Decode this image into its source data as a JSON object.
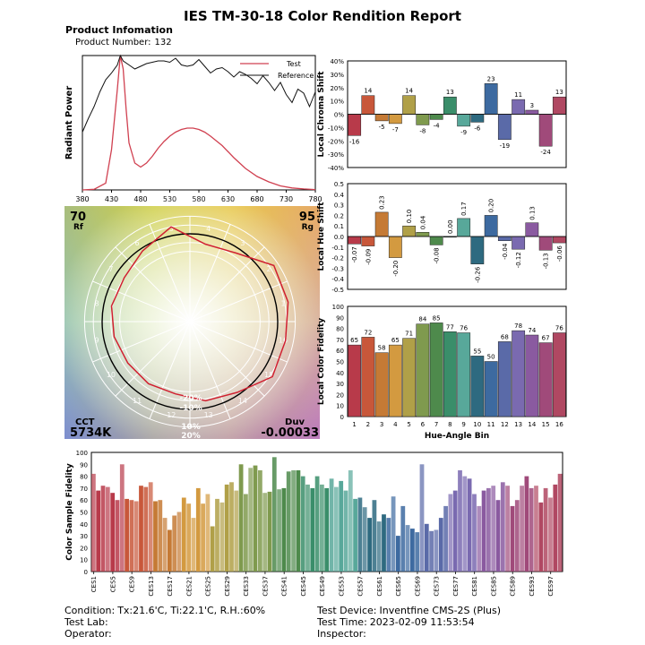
{
  "report": {
    "title": "IES TM-30-18 Color Rendition Report",
    "info_heading": "Product Infomation",
    "product_number_label": "Product Number:",
    "product_number": "132"
  },
  "footer": {
    "condition_label": "Condition:",
    "condition_value": "Tx:21.6'C, Ti:22.1'C, R.H.:60%",
    "test_lab_label": "Test Lab:",
    "operator_label": "Operator:",
    "device_label": "Test Device:",
    "device_value": "Inventfine CMS-2S (Plus)",
    "time_label": "Test Time:",
    "time_value": "2023-02-09 11:53:54",
    "inspector_label": "Inspector:"
  },
  "colors": {
    "test_line": "#d04050",
    "reference_line": "#111111",
    "bar_outline": "#222222"
  },
  "chart_data": [
    {
      "type": "line",
      "ylabel": "Radiant Power",
      "x_ticks": [
        "380",
        "430",
        "480",
        "530",
        "580",
        "630",
        "680",
        "730",
        "780"
      ],
      "xlim": [
        380,
        780
      ],
      "ylim": [
        0,
        1
      ],
      "legend": [
        "Test",
        "Reference"
      ],
      "series": [
        {
          "name": "Test",
          "x": [
            380,
            400,
            420,
            430,
            440,
            445,
            450,
            455,
            460,
            470,
            480,
            490,
            500,
            510,
            520,
            530,
            540,
            550,
            560,
            570,
            580,
            590,
            600,
            620,
            640,
            660,
            680,
            700,
            720,
            740,
            760,
            780
          ],
          "y": [
            0,
            0.005,
            0.05,
            0.3,
            0.75,
            1.0,
            0.9,
            0.6,
            0.35,
            0.2,
            0.17,
            0.2,
            0.25,
            0.31,
            0.36,
            0.4,
            0.43,
            0.45,
            0.46,
            0.46,
            0.45,
            0.43,
            0.4,
            0.33,
            0.24,
            0.16,
            0.1,
            0.06,
            0.03,
            0.015,
            0.007,
            0.003
          ]
        },
        {
          "name": "Reference",
          "x": [
            380,
            390,
            400,
            410,
            420,
            430,
            440,
            445,
            450,
            460,
            470,
            480,
            490,
            500,
            510,
            520,
            530,
            540,
            550,
            560,
            570,
            580,
            590,
            600,
            610,
            620,
            630,
            640,
            650,
            660,
            670,
            680,
            690,
            700,
            710,
            720,
            730,
            740,
            750,
            760,
            770,
            780
          ],
          "y": [
            0.43,
            0.53,
            0.62,
            0.73,
            0.82,
            0.87,
            0.93,
            1.0,
            0.96,
            0.93,
            0.9,
            0.92,
            0.94,
            0.95,
            0.96,
            0.96,
            0.95,
            0.98,
            0.93,
            0.92,
            0.93,
            0.97,
            0.92,
            0.87,
            0.9,
            0.91,
            0.88,
            0.84,
            0.88,
            0.86,
            0.83,
            0.79,
            0.85,
            0.8,
            0.74,
            0.8,
            0.71,
            0.65,
            0.75,
            0.72,
            0.62,
            0.73
          ]
        }
      ]
    },
    {
      "type": "polar",
      "rf_value": "70",
      "rf_label": "Rf",
      "rg_value": "95",
      "rg_label": "Rg",
      "cct_label": "CCT",
      "cct_value": "5734K",
      "duv_label": "Duv",
      "duv_value": "-0.00033",
      "ring_labels": [
        "-20%",
        "-10%",
        "10%",
        "20%"
      ],
      "hue_bins": [
        "1",
        "2",
        "3",
        "4",
        "5",
        "6",
        "7",
        "8",
        "9",
        "10",
        "11",
        "12",
        "13",
        "14",
        "15",
        "16"
      ],
      "test_radius_ratios": [
        1.14,
        1.15,
        0.94,
        0.9,
        1.1,
        0.97,
        0.9,
        0.91,
        0.88,
        0.85,
        0.85,
        0.84,
        0.92,
        0.97,
        1.13,
        1.11
      ]
    },
    {
      "type": "bar",
      "ylabel": "Local Chroma Shift",
      "ylim": [
        -40,
        40
      ],
      "y_ticks": [
        "40%",
        "30%",
        "20%",
        "10%",
        "0%",
        "-10%",
        "-20%",
        "-30%",
        "-40%"
      ],
      "categories": [
        "1",
        "2",
        "3",
        "4",
        "5",
        "6",
        "7",
        "8",
        "9",
        "10",
        "11",
        "12",
        "13",
        "14",
        "15",
        "16"
      ],
      "values": [
        -16,
        14,
        -5,
        -7,
        14,
        -8,
        -4,
        13,
        -9,
        -6,
        23,
        -19,
        11,
        3,
        -24,
        13
      ],
      "labels": [
        "-16",
        "14",
        "-5",
        "-7",
        "14",
        "-8",
        "-4",
        "13",
        "-9",
        "-6",
        "23",
        "-19",
        "11",
        "3",
        "-24",
        "13"
      ]
    },
    {
      "type": "bar",
      "ylabel": "Local Hue Shift",
      "ylim": [
        -0.5,
        0.5
      ],
      "y_ticks": [
        "0.5",
        "0.4",
        "0.3",
        "0.2",
        "0.1",
        "0.0",
        "-0.1",
        "-0.2",
        "-0.3",
        "-0.4",
        "-0.5"
      ],
      "categories": [
        "1",
        "2",
        "3",
        "4",
        "5",
        "6",
        "7",
        "8",
        "9",
        "10",
        "11",
        "12",
        "13",
        "14",
        "15",
        "16"
      ],
      "values": [
        -0.07,
        -0.09,
        0.23,
        -0.2,
        0.1,
        0.04,
        -0.08,
        0.0,
        0.17,
        -0.26,
        0.2,
        -0.04,
        -0.12,
        0.13,
        -0.13,
        -0.06
      ],
      "labels": [
        "-0.07",
        "-0.09",
        "0.23",
        "-0.20",
        "0.10",
        "0.04",
        "-0.08",
        "0.00",
        "0.17",
        "-0.26",
        "0.20",
        "-0.04",
        "-0.12",
        "0.13",
        "-0.13",
        "-0.06"
      ]
    },
    {
      "type": "bar",
      "ylabel": "Local Color Fidelity",
      "xlabel": "Hue-Angle Bin",
      "ylim": [
        0,
        100
      ],
      "y_ticks": [
        "100",
        "90",
        "80",
        "70",
        "60",
        "50",
        "40",
        "30",
        "20",
        "10",
        "0"
      ],
      "categories": [
        "1",
        "2",
        "3",
        "4",
        "5",
        "6",
        "7",
        "8",
        "9",
        "10",
        "11",
        "12",
        "13",
        "14",
        "15",
        "16"
      ],
      "values": [
        65,
        72,
        58,
        65,
        71,
        84,
        85,
        77,
        76,
        55,
        50,
        68,
        78,
        74,
        67,
        76
      ],
      "labels": [
        "65",
        "72",
        "58",
        "65",
        "71",
        "84",
        "85",
        "77",
        "76",
        "55",
        "50",
        "68",
        "78",
        "74",
        "67",
        "76"
      ]
    },
    {
      "type": "bar",
      "ylabel": "Color Sample Fidelity",
      "ylim": [
        0,
        100
      ],
      "y_ticks": [
        "100",
        "90",
        "80",
        "70",
        "60",
        "50",
        "40",
        "30",
        "20",
        "10",
        "0"
      ],
      "tick_labels": [
        "CES1",
        "CES5",
        "CES9",
        "CES13",
        "CES17",
        "CES21",
        "CES25",
        "CES29",
        "CES33",
        "CES37",
        "CES41",
        "CES45",
        "CES49",
        "CES53",
        "CES57",
        "CES61",
        "CES65",
        "CES69",
        "CES73",
        "CES77",
        "CES81",
        "CES85",
        "CES89",
        "CES93",
        "CES97"
      ],
      "values": [
        82,
        68,
        72,
        71,
        66,
        60,
        90,
        61,
        60,
        59,
        72,
        71,
        75,
        59,
        60,
        45,
        35,
        47,
        50,
        62,
        57,
        45,
        70,
        57,
        65,
        38,
        61,
        58,
        73,
        75,
        68,
        90,
        65,
        87,
        89,
        85,
        66,
        67,
        96,
        69,
        70,
        84,
        85,
        85,
        80,
        73,
        70,
        80,
        73,
        70,
        78,
        71,
        76,
        68,
        85,
        61,
        62,
        54,
        45,
        60,
        42,
        48,
        45,
        63,
        30,
        55,
        39,
        36,
        33,
        90,
        40,
        34,
        35,
        45,
        55,
        65,
        68,
        85,
        80,
        78,
        65,
        55,
        68,
        70,
        72,
        60,
        75,
        72,
        55,
        60,
        72,
        80,
        70,
        72,
        58,
        70,
        62,
        73,
        82
      ]
    }
  ]
}
